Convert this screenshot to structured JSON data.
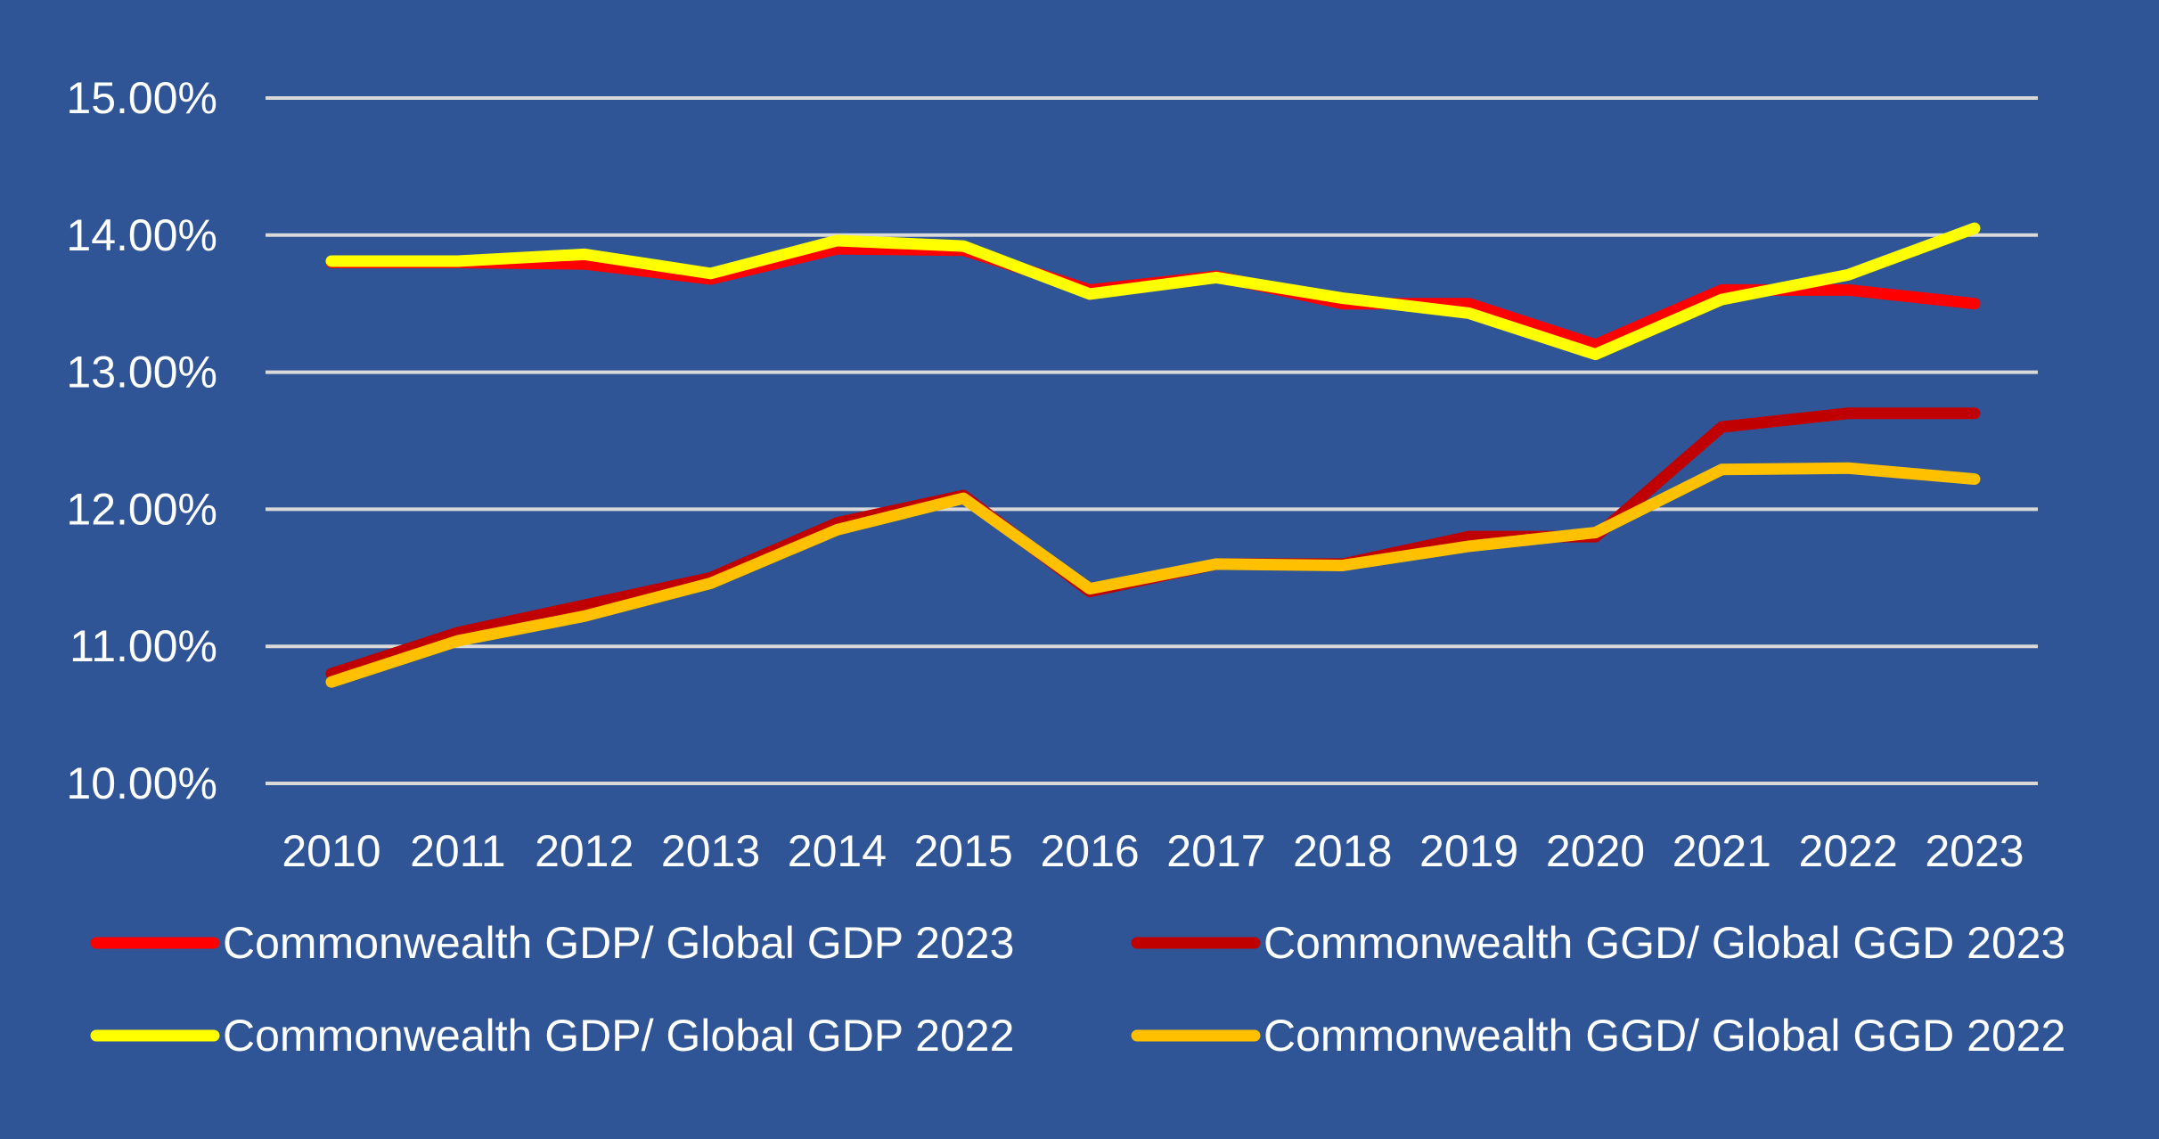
{
  "chart_data": {
    "type": "line",
    "categories": [
      "2010",
      "2011",
      "2012",
      "2013",
      "2014",
      "2015",
      "2016",
      "2017",
      "2018",
      "2019",
      "2020",
      "2021",
      "2022",
      "2023"
    ],
    "ylim": [
      10,
      15
    ],
    "yticks": [
      "10.00%",
      "11.00%",
      "12.00%",
      "13.00%",
      "14.00%",
      "15.00%"
    ],
    "grid": true,
    "legend_position": "bottom",
    "background": "#2F5597",
    "series": [
      {
        "name": "Commonwealth GDP/ Global GDP 2023",
        "color": "#FF0000",
        "values": [
          13.8,
          13.8,
          13.79,
          13.68,
          13.9,
          13.89,
          13.6,
          13.7,
          13.5,
          13.5,
          13.2,
          13.6,
          13.6,
          13.5
        ]
      },
      {
        "name": "Commonwealth GGD/ Global GGD 2023",
        "color": "#C00000",
        "values": [
          10.8,
          11.1,
          11.3,
          11.5,
          11.9,
          12.1,
          11.4,
          11.6,
          11.6,
          11.8,
          11.8,
          12.6,
          12.7,
          12.7
        ]
      },
      {
        "name": "Commonwealth GDP/ Global GDP 2022",
        "color": "#FFFF00",
        "values": [
          13.81,
          13.81,
          13.86,
          13.72,
          13.96,
          13.92,
          13.57,
          13.69,
          13.54,
          13.43,
          13.13,
          13.53,
          13.71,
          14.05
        ]
      },
      {
        "name": "Commonwealth GGD/ Global GGD 2022",
        "color": "#FFC000",
        "values": [
          10.74,
          11.04,
          11.22,
          11.46,
          11.85,
          12.08,
          11.42,
          11.6,
          11.59,
          11.73,
          11.83,
          12.29,
          12.3,
          12.22
        ]
      }
    ]
  }
}
